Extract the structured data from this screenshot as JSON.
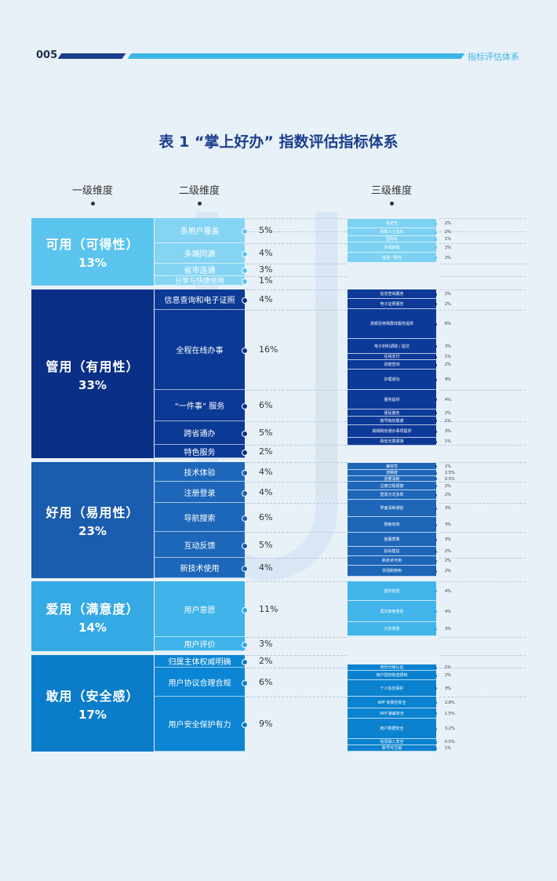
{
  "header": {
    "page_number": "005",
    "section": "指标评估体系"
  },
  "title": "表 1 “掌上好办” 指数评估指标体系",
  "columns": {
    "level1": "一级维度",
    "level2": "二级维度",
    "level3": "三级维度"
  },
  "groups": [
    {
      "name": "可用（可得性）",
      "percent": "13%",
      "color_l1": "#5ac4ef",
      "color_l2": "#86d4f4",
      "color_l3": "#7cd1f3",
      "level2": [
        {
          "label": "多用户覆盖",
          "percent": "5%"
        },
        {
          "label": "多端同源",
          "percent": "4%"
        },
        {
          "label": "省市连通",
          "percent": "3%"
        },
        {
          "label": "分享与快捷使用",
          "percent": "1%"
        }
      ],
      "level3": [
        {
          "label": "适老性",
          "percent": "2%"
        },
        {
          "label": "残障人士友好",
          "percent": "2%"
        },
        {
          "label": "国际化",
          "percent": "1%"
        },
        {
          "label": "多端获取",
          "percent": "2%"
        },
        {
          "label": "体验一致性",
          "percent": "2%"
        }
      ]
    },
    {
      "name": "管用（有用性）",
      "percent": "33%",
      "color_l1": "#0a2f86",
      "color_l2": "#0b3a96",
      "color_l3": "#0d3a98",
      "level2": [
        {
          "label": "信息查询和电子证照",
          "percent": "4%"
        },
        {
          "label": "全程在线办事",
          "percent": "16%"
        },
        {
          "label": "“一件事” 服务",
          "percent": "6%"
        },
        {
          "label": "跨省通办",
          "percent": "5%"
        },
        {
          "label": "特色服务",
          "percent": "2%"
        }
      ],
      "level3": [
        {
          "label": "信息查询服务",
          "percent": "2%"
        },
        {
          "label": "电子证照服务",
          "percent": "2%"
        },
        {
          "label": "高频及特殊群体服务提供",
          "percent": "6%"
        },
        {
          "label": "电子材料调取 / 提交",
          "percent": "3%"
        },
        {
          "label": "在线支付",
          "percent": "1%"
        },
        {
          "label": "进度查询",
          "percent": "2%"
        },
        {
          "label": "办理成功",
          "percent": "4%"
        },
        {
          "label": "服务提供",
          "percent": "4%"
        },
        {
          "label": "便民服务",
          "percent": "2%"
        },
        {
          "label": "账号跨省联通",
          "percent": "1%"
        },
        {
          "label": "高频跨省通办事项提供",
          "percent": "3%"
        },
        {
          "label": "跨省无感漫游",
          "percent": "1%"
        }
      ]
    },
    {
      "name": "好用（易用性）",
      "percent": "23%",
      "color_l1": "#1a5cad",
      "color_l2": "#1d67ba",
      "color_l3": "#1e66b8",
      "level2": [
        {
          "label": "技术体验",
          "percent": "4%"
        },
        {
          "label": "注册登录",
          "percent": "4%"
        },
        {
          "label": "导航搜索",
          "percent": "6%"
        },
        {
          "label": "互动反馈",
          "percent": "5%"
        },
        {
          "label": "新技术使用",
          "percent": "4%"
        }
      ],
      "level3": [
        {
          "label": "兼容性",
          "percent": "1%"
        },
        {
          "label": "流畅度",
          "percent": "2.5%"
        },
        {
          "label": "流量消耗",
          "percent": "0.5%"
        },
        {
          "label": "注册过程便捷",
          "percent": "2%"
        },
        {
          "label": "登录方式多样",
          "percent": "2%"
        },
        {
          "label": "界面清晰通俗",
          "percent": "3%"
        },
        {
          "label": "搜索有效",
          "percent": "3%"
        },
        {
          "label": "客服质量",
          "percent": "3%"
        },
        {
          "label": "投诉建议",
          "percent": "2%"
        },
        {
          "label": "新技术可用",
          "percent": "2%"
        },
        {
          "label": "非强制使用",
          "percent": "2%"
        }
      ]
    },
    {
      "name": "爱用（满意度）",
      "percent": "14%",
      "color_l1": "#35a9e4",
      "color_l2": "#3fb3ea",
      "color_l3": "#41b4ea",
      "level2": [
        {
          "label": "用户意愿",
          "percent": "11%"
        },
        {
          "label": "用户评价",
          "percent": "3%"
        }
      ],
      "level3": [
        {
          "label": "留存意愿",
          "percent": "4%"
        },
        {
          "label": "再次使用意愿",
          "percent": "4%"
        },
        {
          "label": "分享意愿",
          "percent": "3%"
        }
      ]
    },
    {
      "name": "敢用（安全感）",
      "percent": "17%",
      "color_l1": "#0a7cc9",
      "color_l2": "#0c86d4",
      "color_l3": "#0b82cf",
      "level2": [
        {
          "label": "归属主体权威明确",
          "percent": "2%"
        },
        {
          "label": "用户协议合理合规",
          "percent": "6%"
        },
        {
          "label": "用户安全保护有力",
          "percent": "9%"
        }
      ],
      "level3": [
        {
          "label": "身份分级认证",
          "percent": "1%"
        },
        {
          "label": "用户授权和选择权",
          "percent": "2%"
        },
        {
          "label": "个人信息保护",
          "percent": "3%"
        },
        {
          "label": "APP 安装包安全",
          "percent": "2.8%"
        },
        {
          "label": "APP 破解安全",
          "percent": "1.5%"
        },
        {
          "label": "用户数据安全",
          "percent": "3.2%"
        },
        {
          "label": "信息输入安全",
          "percent": "0.5%"
        },
        {
          "label": "账号可注销",
          "percent": "1%"
        }
      ]
    }
  ]
}
